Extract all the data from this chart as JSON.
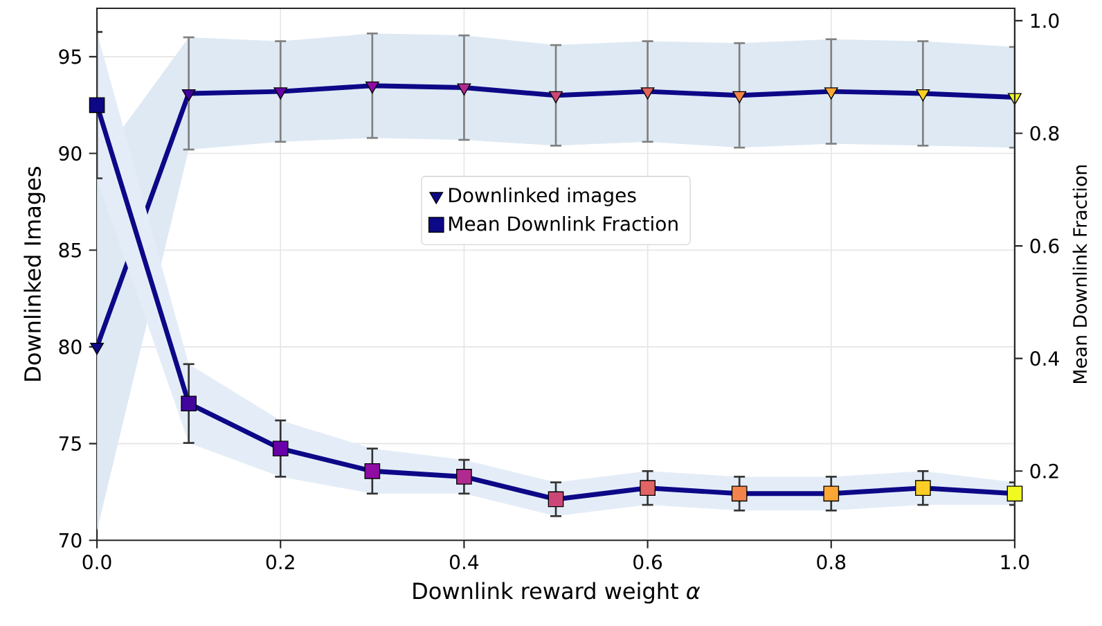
{
  "chart_data": {
    "type": "line",
    "xlabel": "Downlink reward weight *α*",
    "ylabel": "Downlinked Images",
    "y2label": "Mean Downlink Fraction",
    "x": [
      0,
      0.1,
      0.2,
      0.3,
      0.4,
      0.5,
      0.6,
      0.7,
      0.8,
      0.9,
      1.0
    ],
    "xlim": [
      0,
      1
    ],
    "xticks": [
      {
        "value": 0,
        "label": "0.0"
      },
      0.2,
      0.4,
      0.6,
      0.8,
      {
        "value": 1,
        "label": "1.0"
      }
    ],
    "ylim": [
      70,
      97.5
    ],
    "yticks": [
      70,
      75,
      80,
      85,
      90,
      95
    ],
    "y2lim": [
      0.077,
      1.022
    ],
    "y2ticks": [
      0.2,
      0.4,
      0.6,
      0.8,
      {
        "value": 1,
        "label": "1.0"
      }
    ],
    "grid": true,
    "legend": "center",
    "line_style": "solid",
    "series": [
      {
        "name": "Downlinked images",
        "color": "#0d0887",
        "marker": "triangle",
        "colors": [
          "#0d0887",
          "#41049d",
          "#6a00a8",
          "#8f0da4",
          "#b12a90",
          "#cc4778",
          "#e16462",
          "#f2844b",
          "#fca636",
          "#fcce25",
          "#f0f921"
        ],
        "values": [
          80.0,
          93.1,
          93.2,
          93.5,
          93.4,
          93.0,
          93.2,
          93.0,
          93.2,
          93.1,
          92.9
        ],
        "errors": [
          null,
          2.9,
          2.6,
          2.7,
          2.7,
          2.6,
          2.6,
          2.7,
          2.7,
          2.7,
          2.6
        ],
        "lower": [
          70.5,
          90.2,
          90.6,
          90.8,
          90.7,
          90.4,
          90.6,
          90.3,
          90.5,
          90.4,
          90.3
        ],
        "upper": [
          89.5,
          96.0,
          95.8,
          96.2,
          96.1,
          95.6,
          95.8,
          95.7,
          95.9,
          95.8,
          95.5
        ]
      },
      {
        "name": "Mean Downlink Fraction",
        "axis": "y2",
        "color": "#0d0887",
        "marker": "square",
        "colors": [
          "#0d0887",
          "#41049d",
          "#6a00a8",
          "#8f0da4",
          "#b12a90",
          "#cc4778",
          "#e16462",
          "#f2844b",
          "#fca636",
          "#fcce25",
          "#f0f921"
        ],
        "values": [
          0.85,
          0.32,
          0.24,
          0.2,
          0.19,
          0.15,
          0.17,
          0.16,
          0.16,
          0.17,
          0.16
        ],
        "errors": [
          0.13,
          0.07,
          0.05,
          0.04,
          0.03,
          0.03,
          0.03,
          0.03,
          0.03,
          0.03,
          0.02
        ],
        "lower": [
          0.72,
          0.25,
          0.19,
          0.16,
          0.16,
          0.12,
          0.14,
          0.13,
          0.13,
          0.14,
          0.14
        ],
        "upper": [
          0.98,
          0.39,
          0.29,
          0.24,
          0.22,
          0.18,
          0.2,
          0.19,
          0.19,
          0.2,
          0.18
        ]
      }
    ]
  }
}
